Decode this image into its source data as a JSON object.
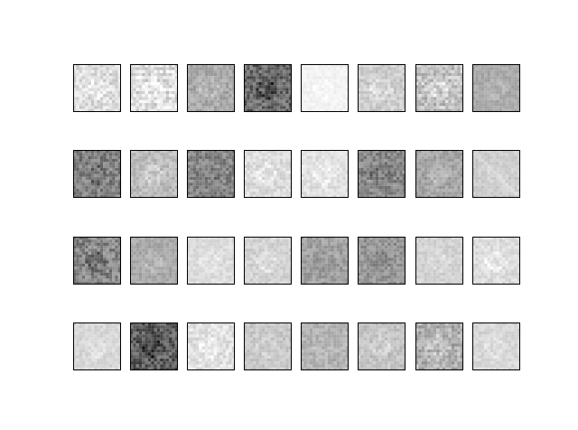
{
  "figure": {
    "rows": 4,
    "cols": 8,
    "tile_kind": "grayscale feature-map thumbnails (no axes, no labels)",
    "palette": {
      "background": "#ffffff",
      "border": "#000000"
    },
    "tiles": [
      {
        "row": 0,
        "col": 0,
        "base": 0.86,
        "motif": 0.1,
        "noise": 0.1,
        "variant": "light"
      },
      {
        "row": 0,
        "col": 1,
        "base": 0.83,
        "motif": 0.16,
        "noise": 0.11,
        "variant": "light-striped"
      },
      {
        "row": 0,
        "col": 2,
        "base": 0.66,
        "motif": 0.1,
        "noise": 0.08,
        "variant": "mid"
      },
      {
        "row": 0,
        "col": 3,
        "base": 0.4,
        "motif": -0.22,
        "noise": 0.16,
        "variant": "dark"
      },
      {
        "row": 0,
        "col": 4,
        "base": 0.95,
        "motif": 0.04,
        "noise": 0.03,
        "variant": "very-light"
      },
      {
        "row": 0,
        "col": 5,
        "base": 0.8,
        "motif": 0.1,
        "noise": 0.08,
        "variant": "light"
      },
      {
        "row": 0,
        "col": 6,
        "base": 0.72,
        "motif": 0.18,
        "noise": 0.12,
        "variant": "light-striped"
      },
      {
        "row": 0,
        "col": 7,
        "base": 0.66,
        "motif": 0.06,
        "noise": 0.05,
        "variant": "mid"
      },
      {
        "row": 1,
        "col": 0,
        "base": 0.5,
        "motif": -0.12,
        "noise": 0.14,
        "variant": "dark"
      },
      {
        "row": 1,
        "col": 1,
        "base": 0.73,
        "motif": 0.1,
        "noise": 0.08,
        "variant": "mid"
      },
      {
        "row": 1,
        "col": 2,
        "base": 0.52,
        "motif": -0.08,
        "noise": 0.12,
        "variant": "dark"
      },
      {
        "row": 1,
        "col": 3,
        "base": 0.86,
        "motif": 0.08,
        "noise": 0.07,
        "variant": "light"
      },
      {
        "row": 1,
        "col": 4,
        "base": 0.88,
        "motif": 0.07,
        "noise": 0.06,
        "variant": "light"
      },
      {
        "row": 1,
        "col": 5,
        "base": 0.52,
        "motif": -0.1,
        "noise": 0.12,
        "variant": "dark"
      },
      {
        "row": 1,
        "col": 6,
        "base": 0.64,
        "motif": 0.1,
        "noise": 0.08,
        "variant": "mid"
      },
      {
        "row": 1,
        "col": 7,
        "base": 0.8,
        "motif": 0.06,
        "noise": 0.05,
        "variant": "light-diagonal"
      },
      {
        "row": 2,
        "col": 0,
        "base": 0.52,
        "motif": -0.14,
        "noise": 0.14,
        "variant": "dark"
      },
      {
        "row": 2,
        "col": 1,
        "base": 0.66,
        "motif": 0.08,
        "noise": 0.06,
        "variant": "mid"
      },
      {
        "row": 2,
        "col": 2,
        "base": 0.86,
        "motif": 0.06,
        "noise": 0.05,
        "variant": "light"
      },
      {
        "row": 2,
        "col": 3,
        "base": 0.82,
        "motif": 0.1,
        "noise": 0.06,
        "variant": "light"
      },
      {
        "row": 2,
        "col": 4,
        "base": 0.62,
        "motif": -0.06,
        "noise": 0.08,
        "variant": "mid"
      },
      {
        "row": 2,
        "col": 5,
        "base": 0.58,
        "motif": -0.06,
        "noise": 0.09,
        "variant": "mid"
      },
      {
        "row": 2,
        "col": 6,
        "base": 0.82,
        "motif": 0.05,
        "noise": 0.05,
        "variant": "light"
      },
      {
        "row": 2,
        "col": 7,
        "base": 0.86,
        "motif": 0.1,
        "noise": 0.06,
        "variant": "light"
      },
      {
        "row": 3,
        "col": 0,
        "base": 0.84,
        "motif": 0.06,
        "noise": 0.05,
        "variant": "light"
      },
      {
        "row": 3,
        "col": 1,
        "base": 0.36,
        "motif": -0.2,
        "noise": 0.16,
        "variant": "dark"
      },
      {
        "row": 3,
        "col": 2,
        "base": 0.88,
        "motif": 0.08,
        "noise": 0.08,
        "variant": "light"
      },
      {
        "row": 3,
        "col": 3,
        "base": 0.78,
        "motif": 0.06,
        "noise": 0.06,
        "variant": "light"
      },
      {
        "row": 3,
        "col": 4,
        "base": 0.7,
        "motif": 0.04,
        "noise": 0.07,
        "variant": "mid"
      },
      {
        "row": 3,
        "col": 5,
        "base": 0.76,
        "motif": 0.1,
        "noise": 0.07,
        "variant": "light"
      },
      {
        "row": 3,
        "col": 6,
        "base": 0.66,
        "motif": 0.14,
        "noise": 0.11,
        "variant": "light-striped"
      },
      {
        "row": 3,
        "col": 7,
        "base": 0.84,
        "motif": 0.06,
        "noise": 0.05,
        "variant": "light"
      }
    ]
  }
}
